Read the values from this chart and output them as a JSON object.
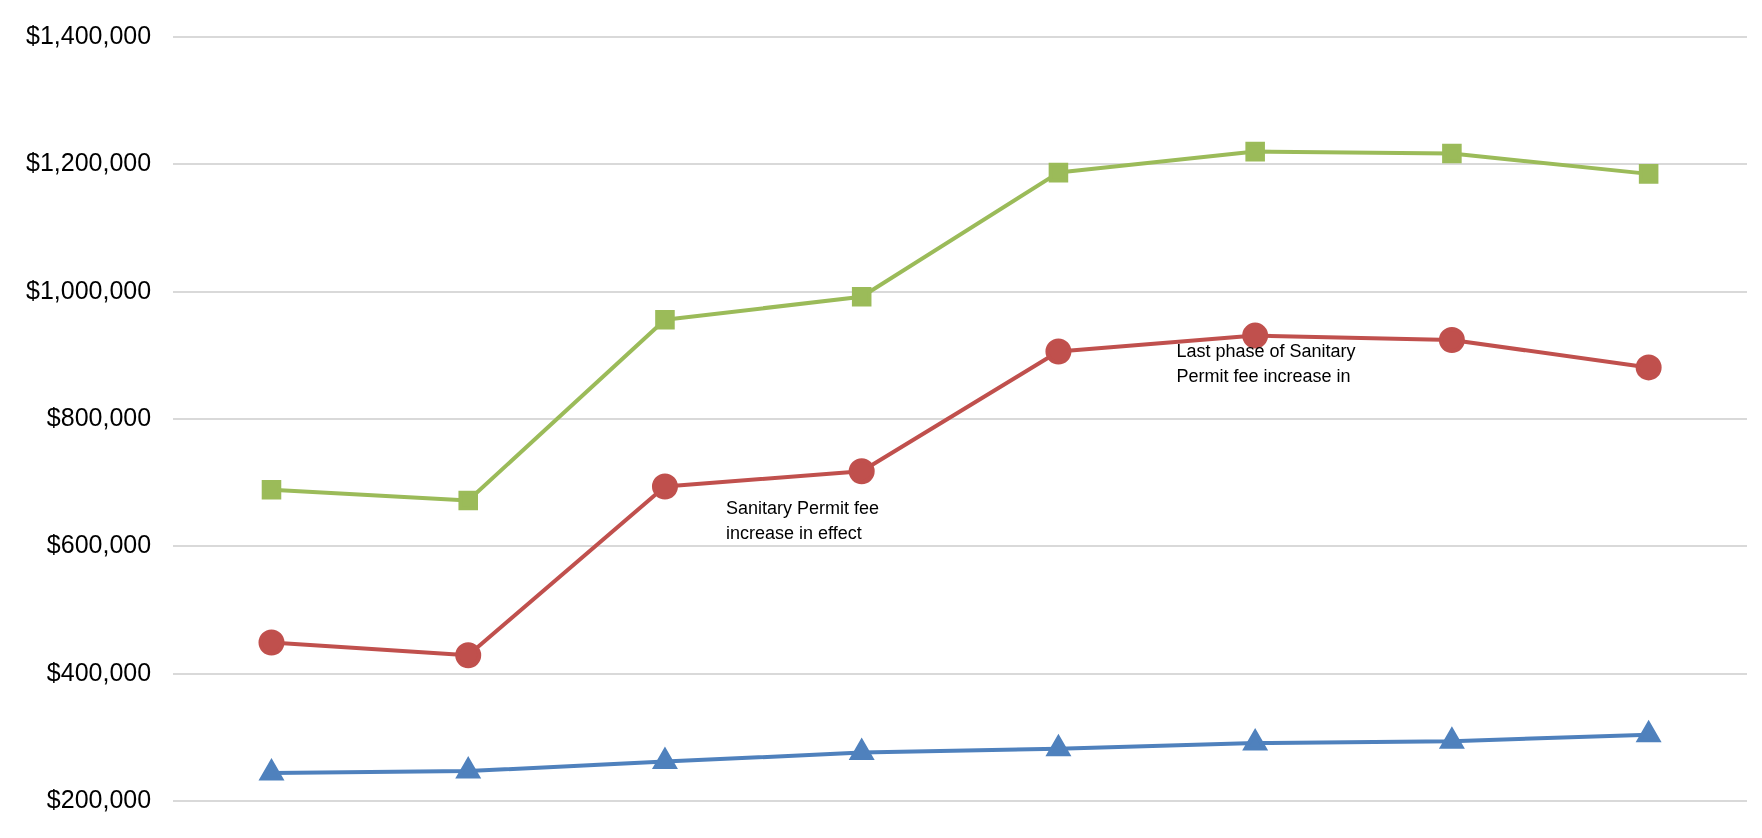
{
  "chart_data": {
    "type": "line",
    "categories": [
      null,
      null,
      null,
      null,
      null,
      null,
      null,
      null
    ],
    "series": [
      {
        "color": "#9bbb59",
        "marker": "square",
        "values": [
          689000,
          672000,
          956000,
          992000,
          1187000,
          1220000,
          1217000,
          1185000
        ]
      },
      {
        "color": "#c0504d",
        "marker": "circle",
        "values": [
          449000,
          429000,
          694000,
          718000,
          906000,
          931000,
          924000,
          881000
        ]
      },
      {
        "color": "#4f81bd",
        "marker": "triangle",
        "values": [
          244000,
          247000,
          262000,
          276000,
          282000,
          291000,
          294000,
          304000
        ]
      }
    ],
    "ylim": [
      200000,
      1400000
    ],
    "yticks": [
      {
        "value": 200000,
        "label": "$200,000"
      },
      {
        "value": 400000,
        "label": "$400,000"
      },
      {
        "value": 600000,
        "label": "$600,000"
      },
      {
        "value": 800000,
        "label": "$800,000"
      },
      {
        "value": 1000000,
        "label": "$1,000,000"
      },
      {
        "value": 1200000,
        "label": "$1,200,000"
      },
      {
        "value": 1400000,
        "label": "$1,400,000"
      }
    ],
    "grid": "y",
    "legend": false,
    "annotations": [
      "Sanitary Permit fee increase in effect",
      "Last phase of Sanitary Permit fee increase in"
    ]
  }
}
